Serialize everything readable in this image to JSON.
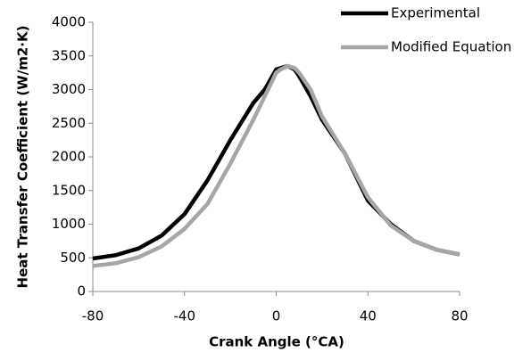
{
  "chart_data": {
    "type": "line",
    "x_label": "Crank Angle (°CA)",
    "y_label": "Heat Transfer Coefficient (W/m2·K)",
    "x": [
      -80,
      -70,
      -60,
      -50,
      -40,
      -30,
      -20,
      -10,
      -5,
      0,
      2,
      5,
      8,
      10,
      15,
      20,
      30,
      40,
      50,
      60,
      70,
      80
    ],
    "series": [
      {
        "name": "Experimental",
        "color": "#000000",
        "values": [
          490,
          540,
          640,
          830,
          1150,
          1650,
          2250,
          2800,
          3000,
          3300,
          3320,
          3350,
          3300,
          3200,
          2900,
          2550,
          2050,
          1350,
          1000,
          750,
          620,
          550
        ]
      },
      {
        "name": "Modified Equation",
        "color": "#a6a6a6",
        "values": [
          380,
          420,
          510,
          670,
          930,
          1300,
          1900,
          2550,
          2900,
          3250,
          3300,
          3350,
          3320,
          3250,
          3000,
          2600,
          2050,
          1400,
          980,
          750,
          620,
          550
        ]
      }
    ],
    "xlim": [
      -80,
      80
    ],
    "xticks": [
      -80,
      -40,
      0,
      40,
      80
    ],
    "ylim": [
      0,
      4000
    ],
    "yticks": [
      0,
      500,
      1000,
      1500,
      2000,
      2500,
      3000,
      3500,
      4000
    ],
    "legend": "top-right"
  }
}
